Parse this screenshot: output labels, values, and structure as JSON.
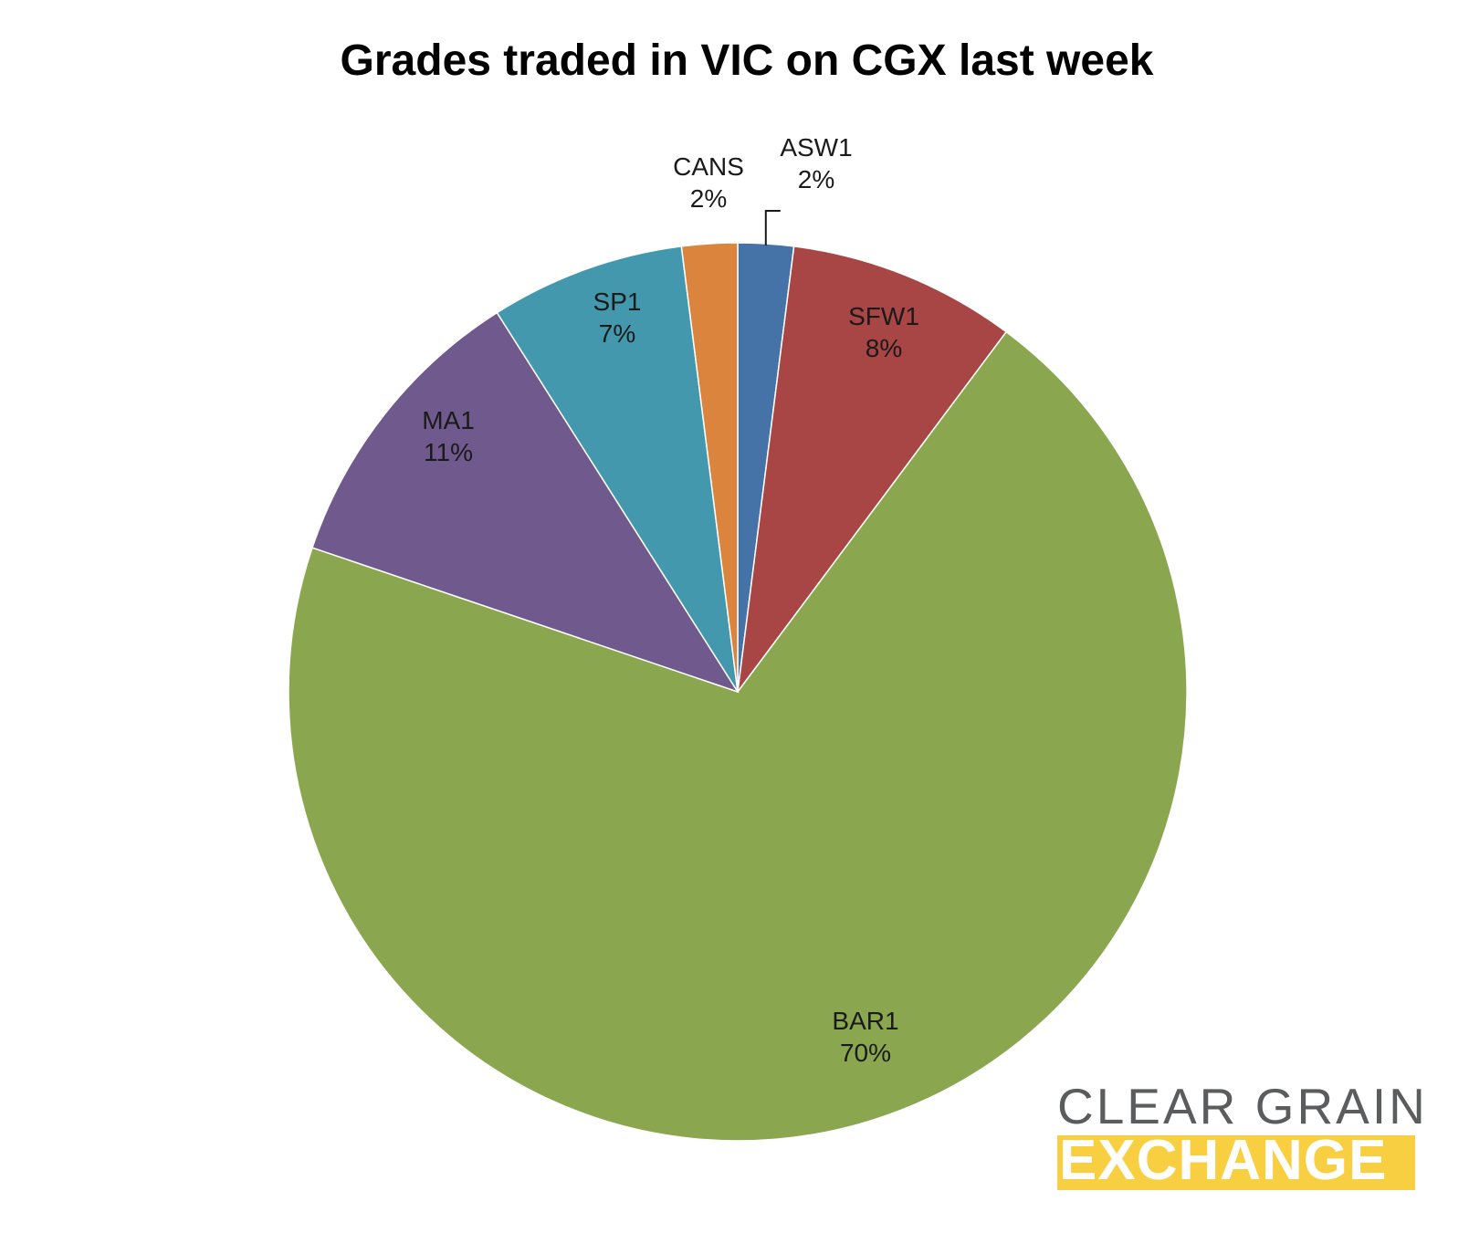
{
  "chart_data": {
    "type": "pie",
    "title": "Grades traded in VIC on CGX last week",
    "start_angle_deg": 0,
    "direction": "clockwise",
    "slices": [
      {
        "label": "ASW1",
        "percent": "2%",
        "value": 2.0,
        "color": "#4572a7"
      },
      {
        "label": "SFW1",
        "percent": "8%",
        "value": 8.2,
        "color": "#a84545"
      },
      {
        "label": "BAR1",
        "percent": "70%",
        "value": 70.0,
        "color": "#8aa74f"
      },
      {
        "label": "MA1",
        "percent": "11%",
        "value": 10.8,
        "color": "#70598c"
      },
      {
        "label": "SP1",
        "percent": "7%",
        "value": 7.0,
        "color": "#4398ae"
      },
      {
        "label": "CANS",
        "percent": "2%",
        "value": 2.0,
        "color": "#db843d"
      }
    ],
    "legend": "none",
    "data_labels": "category name and percentage"
  },
  "logo": {
    "line1": "CLEAR GRAIN",
    "line2": "EXCHANGE",
    "text_color": "#5a5c5e",
    "bar_color": "#f9cf42"
  }
}
